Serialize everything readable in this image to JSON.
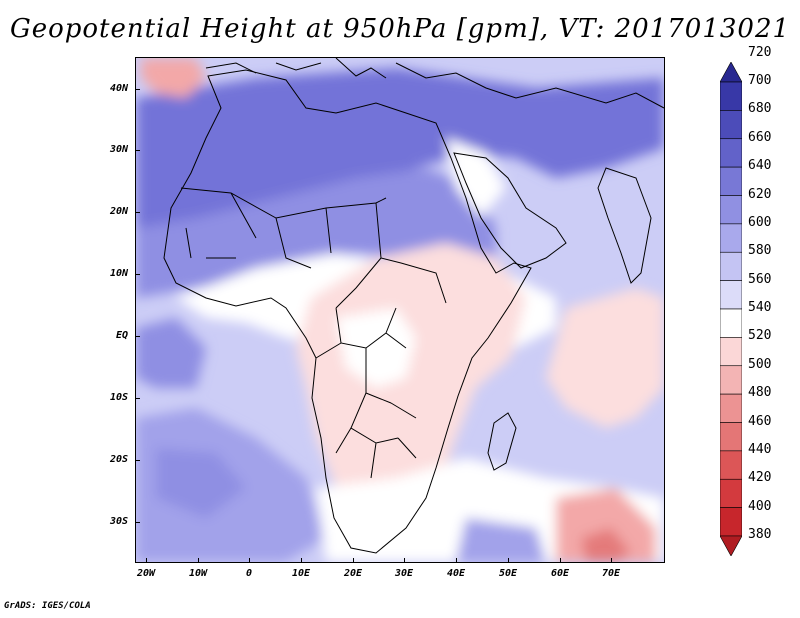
{
  "title": "Geopotential Height at 950hPa [gpm], VT: 2017013021",
  "credit": "GrADS: IGES/COLA",
  "lat_labels": [
    "40N",
    "30N",
    "20N",
    "10N",
    "EQ",
    "10S",
    "20S",
    "30S"
  ],
  "lon_labels": [
    "20W",
    "10W",
    "0",
    "10E",
    "20E",
    "30E",
    "40E",
    "50E",
    "60E",
    "70E"
  ],
  "legend": {
    "levels": [
      "380",
      "400",
      "420",
      "440",
      "460",
      "480",
      "500",
      "520",
      "540",
      "560",
      "580",
      "600",
      "620",
      "640",
      "660",
      "680",
      "700",
      "720"
    ],
    "colors": [
      "#b01c22",
      "#c7262c",
      "#d33a3e",
      "#dc5657",
      "#e47676",
      "#ec9393",
      "#f3b4b4",
      "#fbd7d7",
      "#ffffff",
      "#dcdcf9",
      "#c4c4f3",
      "#a9a9ec",
      "#9090e2",
      "#7878d6",
      "#6262c9",
      "#4c4cb9",
      "#3838a7",
      "#282890"
    ]
  },
  "map_colors": {
    "ocean_base": "#cccdf6",
    "land_light": "#ffffff",
    "land_pink": "#fcdede",
    "sahara_blue": "#8f8fe3",
    "north_blue": "#7373d8",
    "pink_low": "#f3a8a8",
    "red_low": "#e47a7a",
    "south_blue": "#a2a2ea"
  }
}
